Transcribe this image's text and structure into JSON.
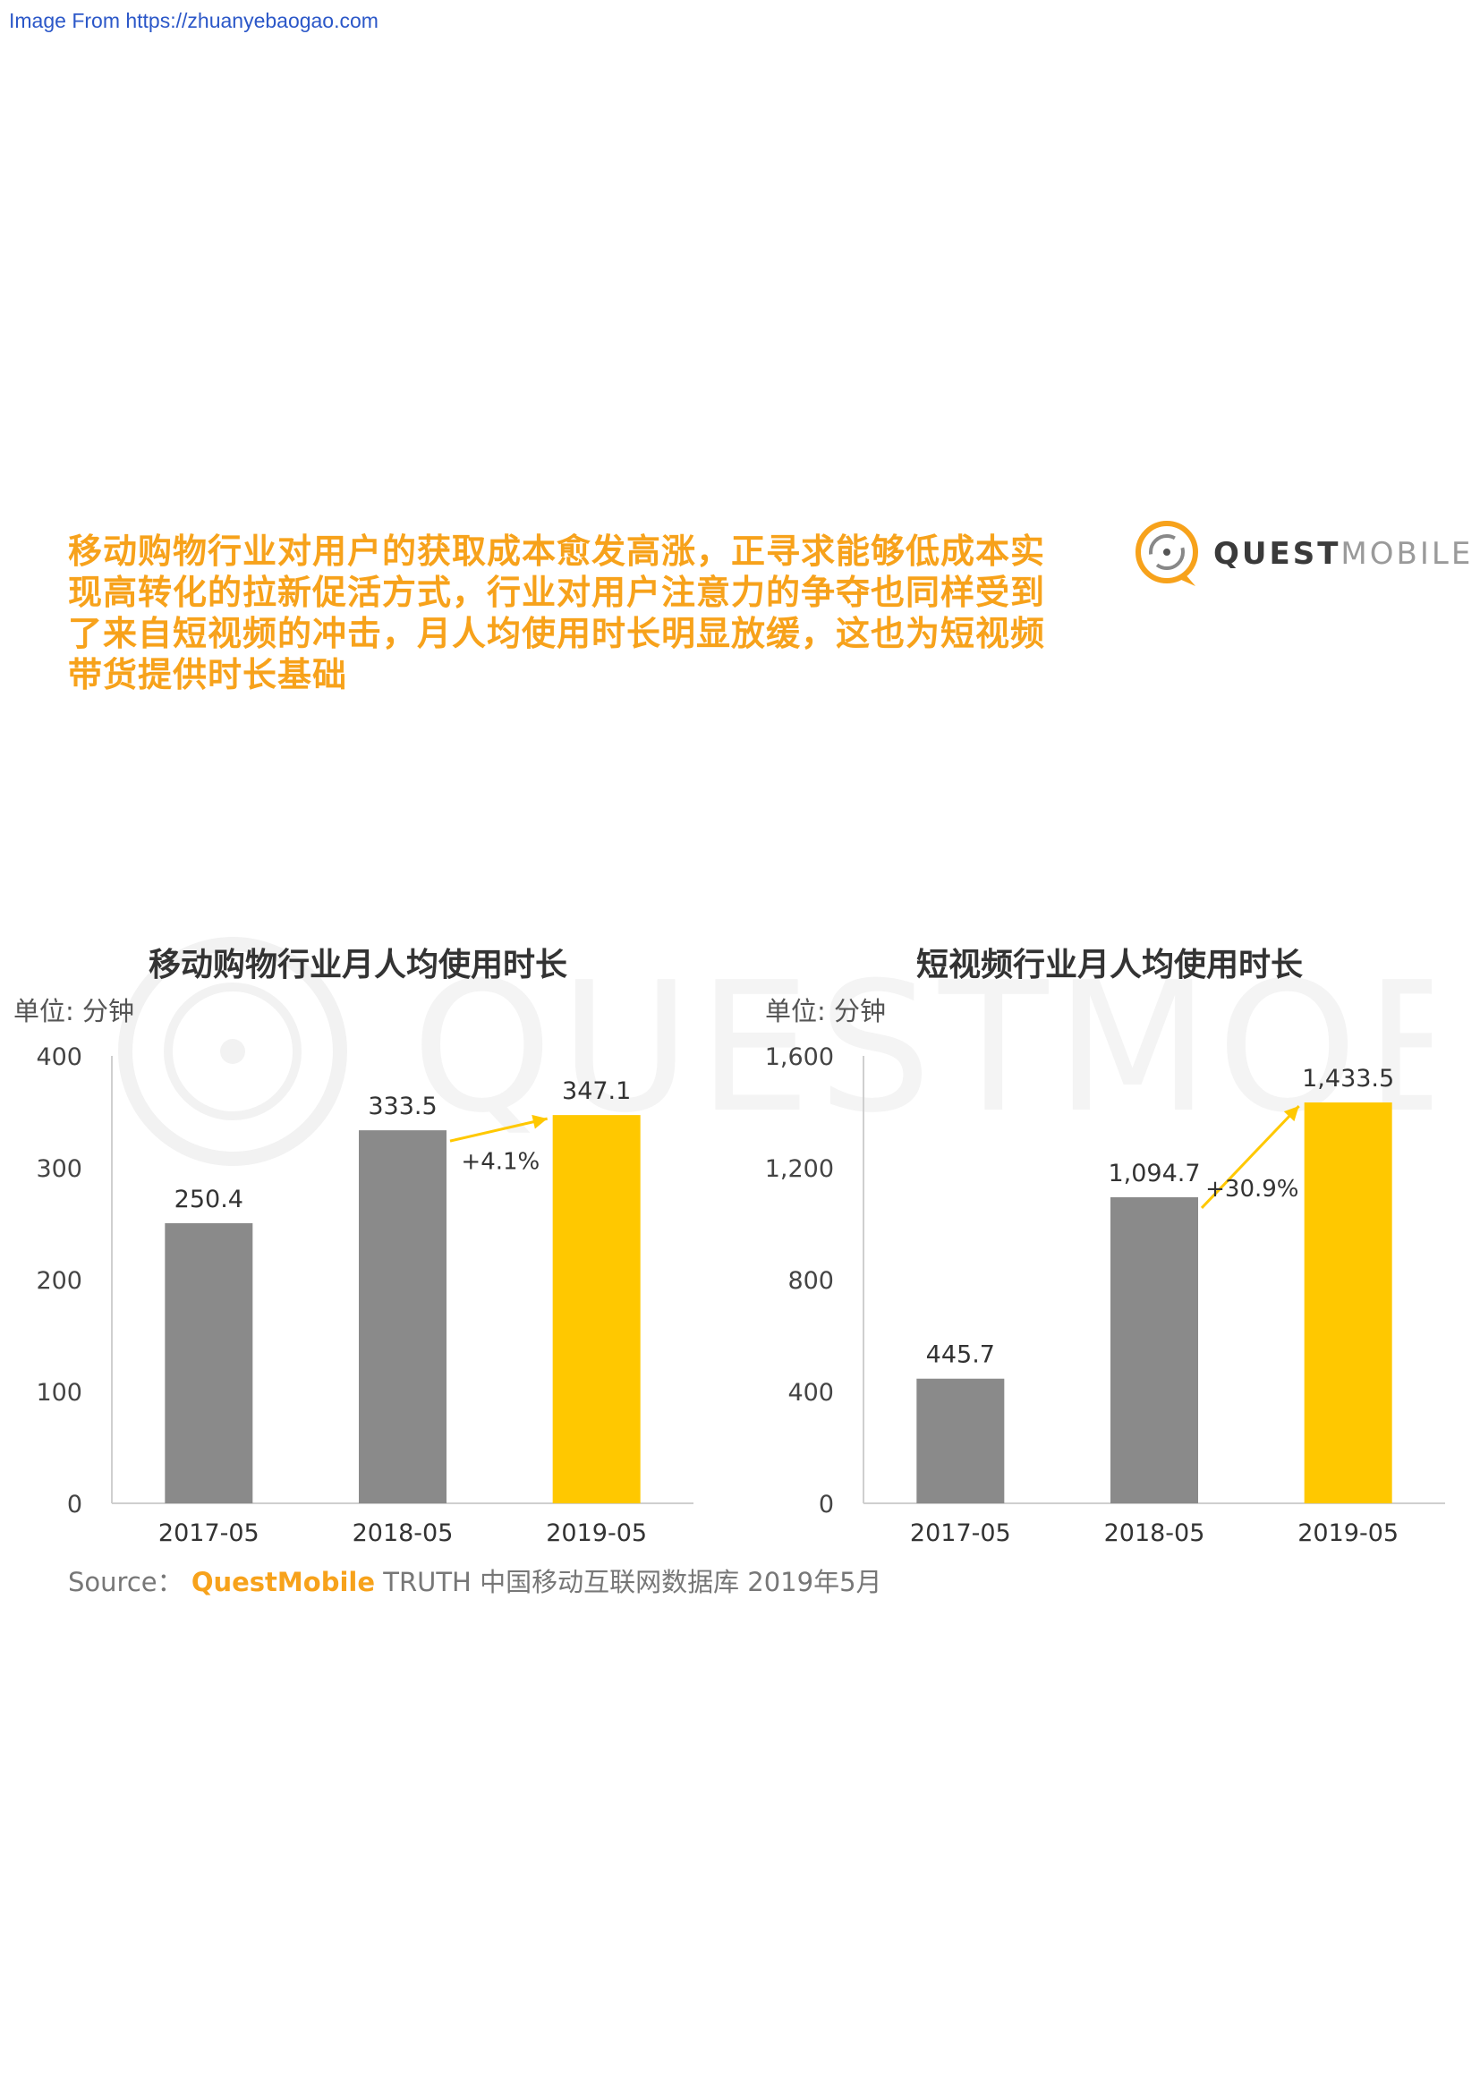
{
  "page": {
    "source_url": "Image From https://zhuanyebaogao.com",
    "headline_lines": [
      "移动购物行业对用户的获取成本愈发高涨，正寻求能够低成本实",
      "现高转化的拉新促活方式，行业对用户注意力的争夺也同样受到",
      "了来自短视频的冲击，月人均使用时长明显放缓，这也为短视频",
      "带货提供时长基础"
    ],
    "logo": {
      "bold": "QUEST",
      "light": "MOBILE"
    },
    "watermark": "QUESTMOBILE",
    "source": {
      "prefix": "Source：",
      "brand": "QuestMobile",
      "rest": "TRUTH 中国移动互联网数据库 2019年5月"
    }
  },
  "colors": {
    "accent": "#f7a21b",
    "gray_bar": "#8a8a8a",
    "yellow_bar": "#ffc800",
    "arrow": "#ffc800"
  },
  "chart_data": [
    {
      "type": "bar",
      "title": "移动购物行业月人均使用时长",
      "unit_label": "单位: 分钟",
      "categories": [
        "2017-05",
        "2018-05",
        "2019-05"
      ],
      "values": [
        250.4,
        333.5,
        347.1
      ],
      "value_labels": [
        "250.4",
        "333.5",
        "347.1"
      ],
      "yticks": [
        "0",
        "100",
        "200",
        "300",
        "400"
      ],
      "ylim": [
        0,
        400
      ],
      "growth_label": "+4.1%",
      "highlight_index": 2,
      "grid": false,
      "legend": "none"
    },
    {
      "type": "bar",
      "title": "短视频行业月人均使用时长",
      "unit_label": "单位: 分钟",
      "categories": [
        "2017-05",
        "2018-05",
        "2019-05"
      ],
      "values": [
        445.7,
        1094.7,
        1433.5
      ],
      "value_labels": [
        "445.7",
        "1,094.7",
        "1,433.5"
      ],
      "yticks": [
        "0",
        "400",
        "800",
        "1,200",
        "1,600"
      ],
      "ylim": [
        0,
        1600
      ],
      "growth_label": "+30.9%",
      "highlight_index": 2,
      "grid": false,
      "legend": "none"
    }
  ]
}
